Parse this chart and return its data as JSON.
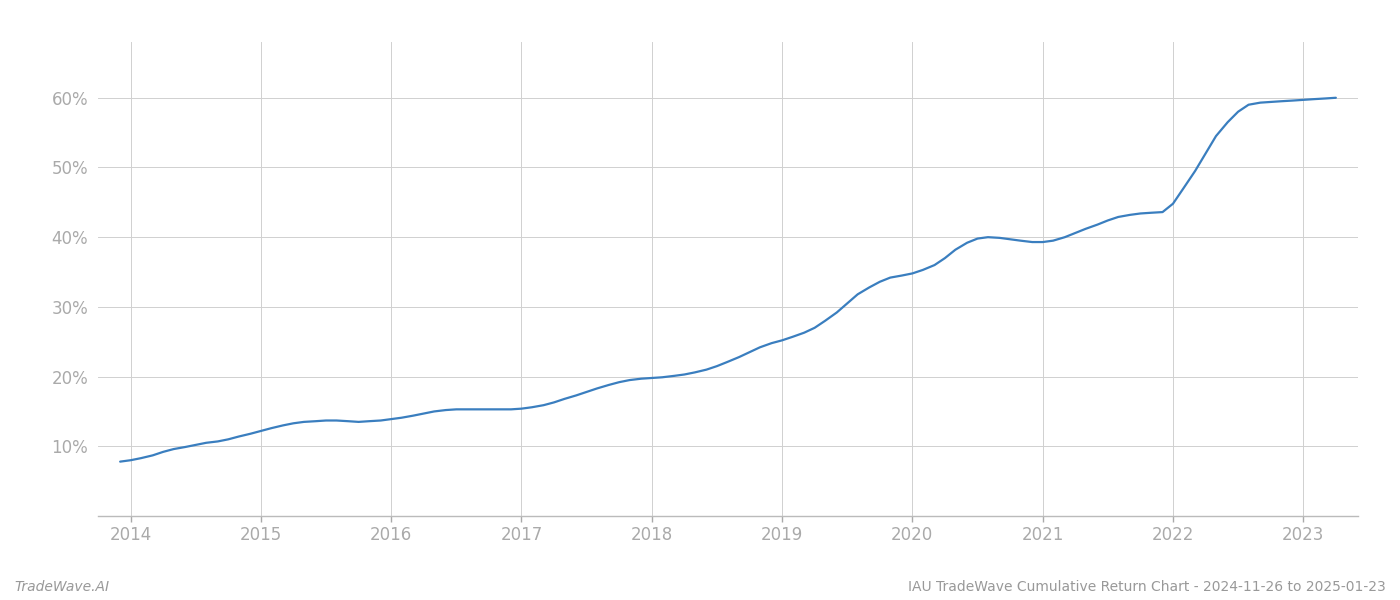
{
  "title": "IAU TradeWave Cumulative Return Chart - 2024-11-26 to 2025-01-23",
  "watermark": "TradeWave.AI",
  "line_color": "#3a7ebf",
  "background_color": "#ffffff",
  "grid_color": "#d0d0d0",
  "x_years": [
    2013.92,
    2014.0,
    2014.08,
    2014.17,
    2014.25,
    2014.33,
    2014.42,
    2014.5,
    2014.58,
    2014.67,
    2014.75,
    2014.83,
    2014.92,
    2015.0,
    2015.08,
    2015.17,
    2015.25,
    2015.33,
    2015.42,
    2015.5,
    2015.58,
    2015.67,
    2015.75,
    2015.83,
    2015.92,
    2016.0,
    2016.08,
    2016.17,
    2016.25,
    2016.33,
    2016.42,
    2016.5,
    2016.58,
    2016.67,
    2016.75,
    2016.83,
    2016.92,
    2017.0,
    2017.08,
    2017.17,
    2017.25,
    2017.33,
    2017.42,
    2017.5,
    2017.58,
    2017.67,
    2017.75,
    2017.83,
    2017.92,
    2018.0,
    2018.08,
    2018.17,
    2018.25,
    2018.33,
    2018.42,
    2018.5,
    2018.58,
    2018.67,
    2018.75,
    2018.83,
    2018.92,
    2019.0,
    2019.08,
    2019.17,
    2019.25,
    2019.33,
    2019.42,
    2019.5,
    2019.58,
    2019.67,
    2019.75,
    2019.83,
    2019.92,
    2020.0,
    2020.08,
    2020.17,
    2020.25,
    2020.33,
    2020.42,
    2020.5,
    2020.58,
    2020.67,
    2020.75,
    2020.83,
    2020.92,
    2021.0,
    2021.08,
    2021.17,
    2021.25,
    2021.33,
    2021.42,
    2021.5,
    2021.58,
    2021.67,
    2021.75,
    2021.83,
    2021.92,
    2022.0,
    2022.08,
    2022.17,
    2022.25,
    2022.33,
    2022.42,
    2022.5,
    2022.58,
    2022.67,
    2022.75,
    2022.83,
    2022.92,
    2023.0,
    2023.08,
    2023.17,
    2023.25
  ],
  "y_values": [
    7.8,
    8.0,
    8.3,
    8.7,
    9.2,
    9.6,
    9.9,
    10.2,
    10.5,
    10.7,
    11.0,
    11.4,
    11.8,
    12.2,
    12.6,
    13.0,
    13.3,
    13.5,
    13.6,
    13.7,
    13.7,
    13.6,
    13.5,
    13.6,
    13.7,
    13.9,
    14.1,
    14.4,
    14.7,
    15.0,
    15.2,
    15.3,
    15.3,
    15.3,
    15.3,
    15.3,
    15.3,
    15.4,
    15.6,
    15.9,
    16.3,
    16.8,
    17.3,
    17.8,
    18.3,
    18.8,
    19.2,
    19.5,
    19.7,
    19.8,
    19.9,
    20.1,
    20.3,
    20.6,
    21.0,
    21.5,
    22.1,
    22.8,
    23.5,
    24.2,
    24.8,
    25.2,
    25.7,
    26.3,
    27.0,
    28.0,
    29.2,
    30.5,
    31.8,
    32.8,
    33.6,
    34.2,
    34.5,
    34.8,
    35.3,
    36.0,
    37.0,
    38.2,
    39.2,
    39.8,
    40.0,
    39.9,
    39.7,
    39.5,
    39.3,
    39.3,
    39.5,
    40.0,
    40.6,
    41.2,
    41.8,
    42.4,
    42.9,
    43.2,
    43.4,
    43.5,
    43.6,
    44.8,
    47.0,
    49.5,
    52.0,
    54.5,
    56.5,
    58.0,
    59.0,
    59.3,
    59.4,
    59.5,
    59.6,
    59.7,
    59.8,
    59.9,
    60.0
  ],
  "xlim": [
    2013.75,
    2023.42
  ],
  "ylim": [
    0,
    68
  ],
  "yticks": [
    10,
    20,
    30,
    40,
    50,
    60
  ],
  "ytick_labels": [
    "10%",
    "20%",
    "30%",
    "40%",
    "50%",
    "60%"
  ],
  "xticks": [
    2014,
    2015,
    2016,
    2017,
    2018,
    2019,
    2020,
    2021,
    2022,
    2023
  ],
  "xtick_labels": [
    "2014",
    "2015",
    "2016",
    "2017",
    "2018",
    "2019",
    "2020",
    "2021",
    "2022",
    "2023"
  ],
  "tick_color": "#aaaaaa",
  "axis_color": "#bbbbbb",
  "label_color": "#999999",
  "line_width": 1.6,
  "font_size_ticks": 12,
  "font_size_footer": 10
}
